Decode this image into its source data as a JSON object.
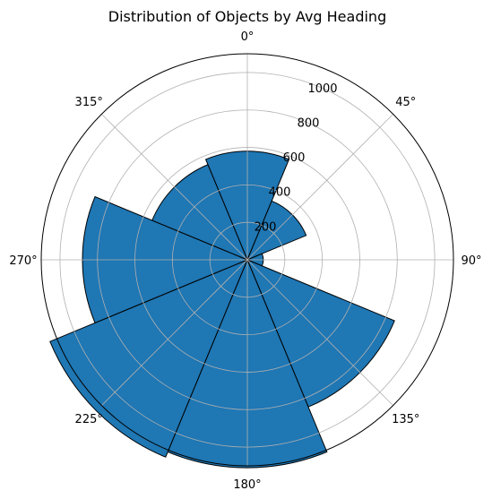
{
  "chart_data": {
    "type": "bar",
    "subtype": "polar",
    "title": "Distribution of Objects by Avg Heading",
    "theta_zero": "top",
    "theta_direction": "clockwise",
    "angle_tick_labels": [
      "0°",
      "45°",
      "90°",
      "135°",
      "180°",
      "225°",
      "270°",
      "315°"
    ],
    "radial_tick_labels": [
      "200",
      "400",
      "600",
      "800",
      "1000"
    ],
    "radial_ticks": [
      200,
      400,
      600,
      800,
      1000
    ],
    "rlim": [
      0,
      1100
    ],
    "grid": true,
    "bar_color": "#1f77b4",
    "bar_edge_color": "#000000",
    "categories": [
      "0°",
      "45°",
      "90°",
      "135°",
      "180°",
      "225°",
      "270°",
      "315°"
    ],
    "values": [
      580,
      340,
      85,
      850,
      1110,
      1140,
      880,
      550
    ]
  }
}
